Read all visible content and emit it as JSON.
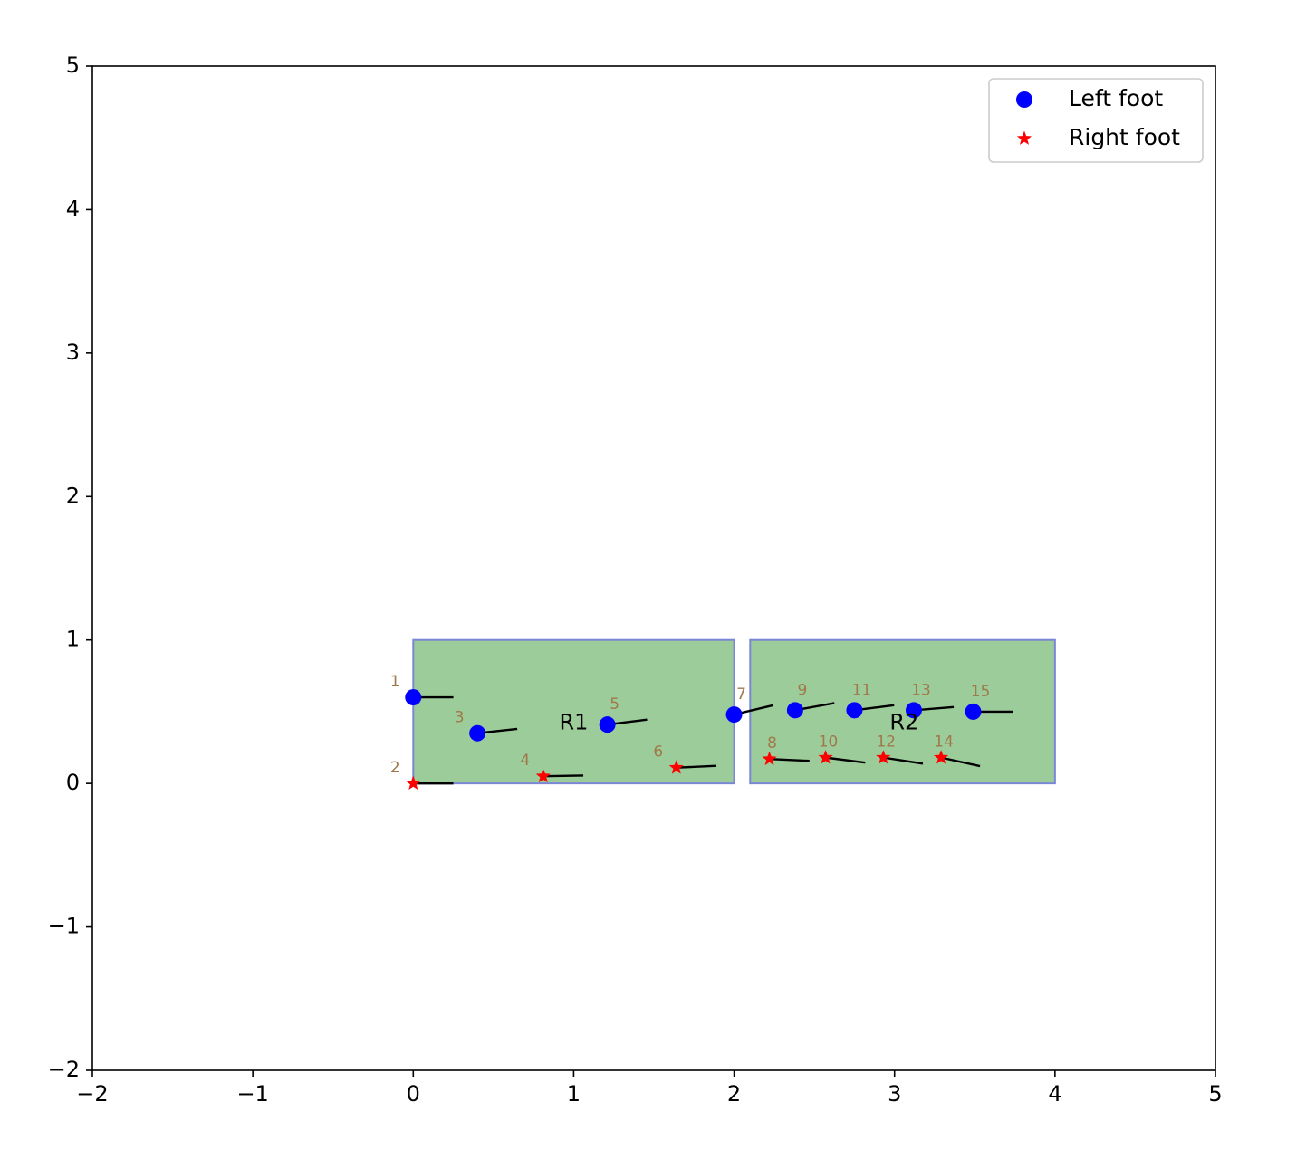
{
  "chart_data": {
    "type": "scatter",
    "xlim": [
      -2,
      5
    ],
    "ylim": [
      -2,
      5
    ],
    "x_ticks": [
      -2,
      -1,
      0,
      1,
      2,
      3,
      4,
      5
    ],
    "y_ticks": [
      -2,
      -1,
      0,
      1,
      2,
      3,
      4,
      5
    ],
    "x_tick_labels": [
      "−2",
      "−1",
      "0",
      "1",
      "2",
      "3",
      "4",
      "5"
    ],
    "y_tick_labels": [
      "−2",
      "−1",
      "0",
      "1",
      "2",
      "3",
      "4",
      "5"
    ],
    "grid": false,
    "legend_position": "top-right",
    "regions": [
      {
        "name": "R1",
        "x0": 0.0,
        "y0": 0.0,
        "x1": 2.0,
        "y1": 1.0,
        "label_x": 1.0,
        "label_y": 0.42
      },
      {
        "name": "R2",
        "x0": 2.1,
        "y0": 0.0,
        "x1": 4.0,
        "y1": 1.0,
        "label_x": 3.06,
        "label_y": 0.42
      }
    ],
    "region_fill": "#9ccc9a",
    "region_edge": "#7b86d6",
    "series": [
      {
        "name": "Left foot",
        "marker": "circle",
        "color": "#0000ff",
        "steps": [
          {
            "label": "1",
            "x": 0.0,
            "y": 0.6,
            "theta": 0.0
          },
          {
            "label": "3",
            "x": 0.4,
            "y": 0.35,
            "theta": 0.12
          },
          {
            "label": "5",
            "x": 1.21,
            "y": 0.41,
            "theta": 0.14
          },
          {
            "label": "7",
            "x": 2.0,
            "y": 0.48,
            "theta": 0.26
          },
          {
            "label": "9",
            "x": 2.38,
            "y": 0.51,
            "theta": 0.2
          },
          {
            "label": "11",
            "x": 2.75,
            "y": 0.51,
            "theta": 0.14
          },
          {
            "label": "13",
            "x": 3.12,
            "y": 0.51,
            "theta": 0.09
          },
          {
            "label": "15",
            "x": 3.49,
            "y": 0.5,
            "theta": 0.0
          }
        ]
      },
      {
        "name": "Right foot",
        "marker": "star",
        "color": "#ff0000",
        "steps": [
          {
            "label": "2",
            "x": 0.0,
            "y": 0.0,
            "theta": 0.0
          },
          {
            "label": "4",
            "x": 0.81,
            "y": 0.05,
            "theta": 0.02
          },
          {
            "label": "6",
            "x": 1.64,
            "y": 0.11,
            "theta": 0.05
          },
          {
            "label": "8",
            "x": 2.22,
            "y": 0.17,
            "theta": -0.05
          },
          {
            "label": "10",
            "x": 2.57,
            "y": 0.18,
            "theta": -0.14
          },
          {
            "label": "12",
            "x": 2.93,
            "y": 0.18,
            "theta": -0.17
          },
          {
            "label": "14",
            "x": 3.29,
            "y": 0.18,
            "theta": -0.24
          }
        ]
      }
    ],
    "heading_length": 0.25
  }
}
